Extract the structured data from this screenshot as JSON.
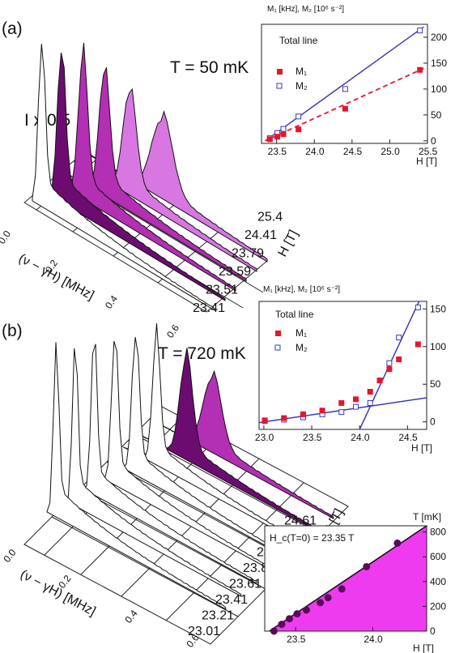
{
  "panels": [
    {
      "label": "(a)",
      "temperature": "T = 50 mK",
      "scale_note": "I x 0.5",
      "x_axis_label": "(ν − γH) [MHz]",
      "x_ticks": [
        "0.0",
        "0.2",
        "0.4",
        "0.6"
      ],
      "field_axis_label": "H [T]",
      "fields": [
        "23.41",
        "23.51",
        "23.59",
        "23.79",
        "24.41",
        "25.4"
      ]
    },
    {
      "label": "(b)",
      "temperature": "T = 720 mK",
      "x_axis_label": "(ν − γH) [MHz]",
      "x_ticks": [
        "0.0",
        "0.2",
        "0.4",
        "0.6"
      ],
      "field_axis_label": "H [T]",
      "fields": [
        "23.01",
        "23.21",
        "23.41",
        "23.61",
        "23.81",
        "24.11",
        "24.21",
        "24.61"
      ]
    }
  ],
  "chart_data": [
    {
      "type": "scatter",
      "panel": "(a) inset",
      "annotation": "Total line",
      "xlabel": "H [T]",
      "ylabel": "M₁ [kHz], M₂ [10⁶ s⁻²]",
      "xlim": [
        23.3,
        25.5
      ],
      "ylim": [
        -5,
        225
      ],
      "x_ticks": [
        "23.5",
        "24.0",
        "24.5",
        "25.0",
        "25.5"
      ],
      "y_ticks": [
        "0",
        "50",
        "100",
        "150",
        "200"
      ],
      "series": [
        {
          "name": "M₁",
          "marker": "filled-square",
          "color": "#e8142d",
          "points": [
            [
              23.41,
              3
            ],
            [
              23.51,
              8
            ],
            [
              23.59,
              13
            ],
            [
              23.79,
              22
            ],
            [
              24.41,
              62
            ],
            [
              25.4,
              137
            ]
          ],
          "fit_line": {
            "style": "dashed",
            "from": [
              23.35,
              0
            ],
            "to": [
              25.45,
              140
            ]
          }
        },
        {
          "name": "M₂",
          "marker": "open-square",
          "color": "#3a3ab8",
          "points": [
            [
              23.41,
              5
            ],
            [
              23.51,
              15
            ],
            [
              23.59,
              23
            ],
            [
              23.79,
              47
            ],
            [
              24.41,
              100
            ],
            [
              25.4,
              213
            ]
          ],
          "fit_line": {
            "style": "solid",
            "from": [
              23.35,
              0
            ],
            "to": [
              25.45,
              220
            ]
          }
        }
      ]
    },
    {
      "type": "scatter",
      "panel": "(b) inset",
      "annotation": "Total line",
      "xlabel": "H [T]",
      "ylabel": "M₁ [kHz], M₂ [10⁶ s⁻²]",
      "xlim": [
        22.95,
        24.7
      ],
      "ylim": [
        -10,
        160
      ],
      "x_ticks": [
        "23.0",
        "23.5",
        "24.0",
        "24.5"
      ],
      "y_ticks": [
        "0",
        "50",
        "100",
        "150"
      ],
      "series": [
        {
          "name": "M₁",
          "marker": "filled-square",
          "color": "#e8142d",
          "points": [
            [
              23.01,
              2
            ],
            [
              23.21,
              5
            ],
            [
              23.41,
              10
            ],
            [
              23.61,
              15
            ],
            [
              23.81,
              25
            ],
            [
              23.96,
              30
            ],
            [
              24.11,
              40
            ],
            [
              24.21,
              55
            ],
            [
              24.31,
              70
            ],
            [
              24.41,
              83
            ],
            [
              24.61,
              103
            ]
          ]
        },
        {
          "name": "M₂",
          "marker": "open-square",
          "color": "#3a3ab8",
          "points": [
            [
              23.01,
              1
            ],
            [
              23.21,
              3
            ],
            [
              23.41,
              6
            ],
            [
              23.61,
              10
            ],
            [
              23.81,
              13
            ],
            [
              23.96,
              20
            ],
            [
              24.11,
              25
            ],
            [
              24.21,
              55
            ],
            [
              24.31,
              78
            ],
            [
              24.41,
              112
            ],
            [
              24.61,
              152
            ]
          ],
          "fit_lines": [
            {
              "style": "solid",
              "from": [
                22.95,
                -1
              ],
              "to": [
                24.7,
                32
              ]
            },
            {
              "style": "solid",
              "from": [
                24.0,
                -10
              ],
              "to": [
                24.62,
                160
              ]
            }
          ]
        }
      ]
    },
    {
      "type": "scatter",
      "panel": "(b) phase inset",
      "annotation": "H_c(T=0) = 23.35 T",
      "xlabel": "H [T]",
      "ylabel": "T [mK]",
      "xlim": [
        23.3,
        24.35
      ],
      "ylim": [
        0,
        850
      ],
      "x_ticks": [
        "23.5",
        "24.0"
      ],
      "y_ticks": [
        "0",
        "200",
        "400",
        "600",
        "800"
      ],
      "fill_color": "#ef3bef",
      "points": [
        [
          23.36,
          0
        ],
        [
          23.41,
          55
        ],
        [
          23.46,
          100
        ],
        [
          23.51,
          140
        ],
        [
          23.57,
          170
        ],
        [
          23.66,
          230
        ],
        [
          23.71,
          270
        ],
        [
          23.8,
          340
        ],
        [
          23.96,
          520
        ],
        [
          24.16,
          710
        ]
      ],
      "boundary_line": {
        "from": [
          23.33,
          0
        ],
        "to": [
          24.35,
          850
        ]
      }
    }
  ],
  "colors": {
    "spectrum_dark": "#6d0c70",
    "spectrum_light": "#d877e1",
    "spectrum_mid": "#b32fb3",
    "phase_fill": "#ef3bef",
    "m1": "#e8142d",
    "m2": "#3a3ab8"
  }
}
